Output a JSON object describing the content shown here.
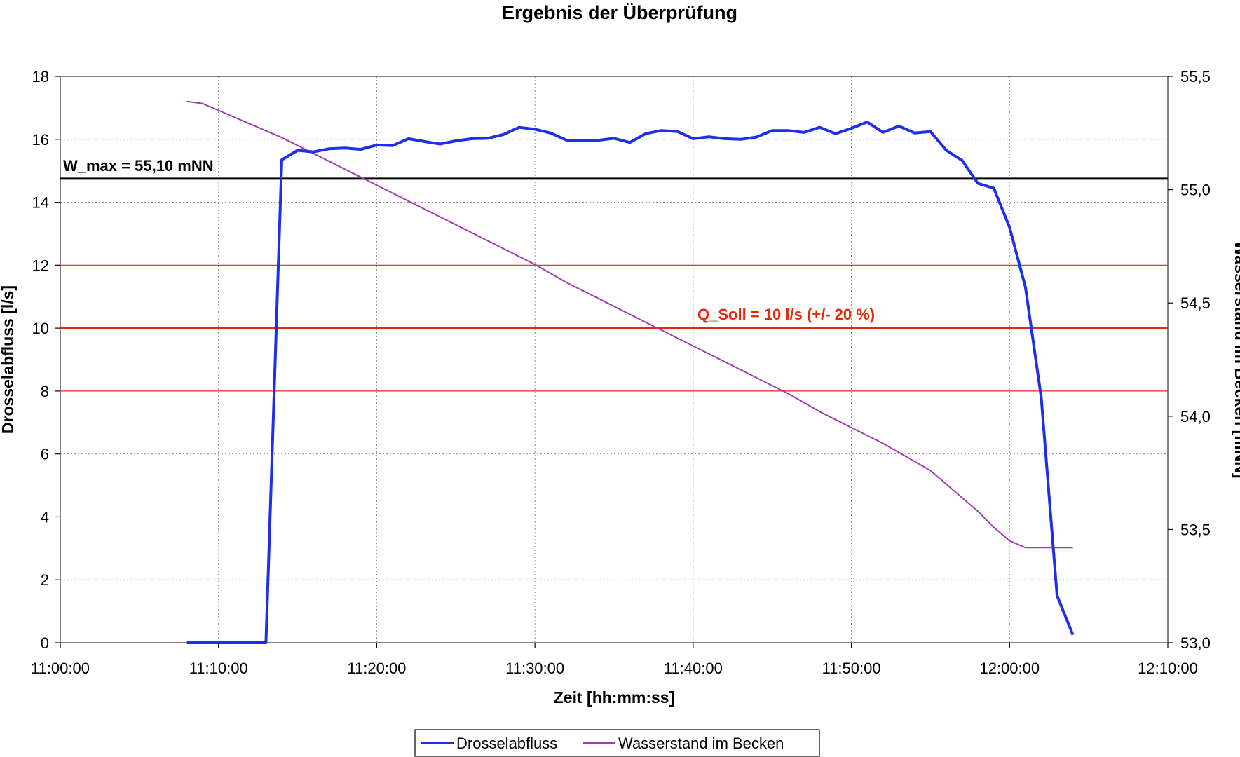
{
  "chart_data": {
    "type": "line",
    "title": "Ergebnis der Überprüfung",
    "xlabel": "Zeit [hh:mm:ss]",
    "ylabel": "Drosselabfluss [l/s]",
    "y2label": "Wasserstand im Becken [mNN]",
    "xlim": [
      "11:00:00",
      "12:10:00"
    ],
    "xticks": [
      "11:00:00",
      "11:10:00",
      "11:20:00",
      "11:30:00",
      "11:40:00",
      "11:50:00",
      "12:00:00",
      "12:10:00"
    ],
    "ylim": [
      0,
      18
    ],
    "yticks": [
      "0",
      "2",
      "4",
      "6",
      "8",
      "10",
      "12",
      "14",
      "16",
      "18"
    ],
    "y2lim": [
      53.0,
      55.5
    ],
    "y2ticks": [
      "53,0",
      "53,5",
      "54,0",
      "54,5",
      "55,0",
      "55,5"
    ],
    "grid": true,
    "legend_position": "bottom-center",
    "series": [
      {
        "name": "Drosselabfluss",
        "axis": "left",
        "color": "#1f2ee8",
        "x": [
          "11:08:00",
          "11:09:00",
          "11:10:00",
          "11:11:00",
          "11:12:00",
          "11:13:00",
          "11:14:00",
          "11:15:00",
          "11:16:00",
          "11:17:00",
          "11:18:00",
          "11:19:00",
          "11:20:00",
          "11:21:00",
          "11:22:00",
          "11:23:00",
          "11:24:00",
          "11:25:00",
          "11:26:00",
          "11:27:00",
          "11:28:00",
          "11:29:00",
          "11:30:00",
          "11:31:00",
          "11:32:00",
          "11:33:00",
          "11:34:00",
          "11:35:00",
          "11:36:00",
          "11:37:00",
          "11:38:00",
          "11:39:00",
          "11:40:00",
          "11:41:00",
          "11:42:00",
          "11:43:00",
          "11:44:00",
          "11:45:00",
          "11:46:00",
          "11:47:00",
          "11:48:00",
          "11:49:00",
          "11:50:00",
          "11:51:00",
          "11:52:00",
          "11:53:00",
          "11:54:00",
          "11:55:00",
          "11:56:00",
          "11:57:00",
          "11:58:00",
          "11:59:00",
          "12:00:00",
          "12:01:00",
          "12:02:00",
          "12:03:00",
          "12:04:00"
        ],
        "values": [
          0,
          0,
          0,
          0,
          0,
          0,
          15.35,
          15.65,
          15.6,
          15.7,
          15.72,
          15.68,
          15.82,
          15.8,
          16.02,
          15.93,
          15.85,
          15.95,
          16.02,
          16.03,
          16.15,
          16.38,
          16.32,
          16.2,
          15.97,
          15.95,
          15.97,
          16.03,
          15.9,
          16.18,
          16.28,
          16.25,
          16.02,
          16.08,
          16.02,
          16.0,
          16.07,
          16.28,
          16.28,
          16.22,
          16.38,
          16.18,
          16.35,
          16.55,
          16.22,
          16.42,
          16.2,
          16.25,
          15.65,
          15.33,
          14.6,
          14.45,
          13.2,
          11.3,
          7.8,
          1.5,
          0.25
        ]
      },
      {
        "name": "Wasserstand im Becken",
        "axis": "right",
        "color": "#a23bb6",
        "x": [
          "11:08:00",
          "11:09:00",
          "11:10:00",
          "11:12:00",
          "11:14:00",
          "11:16:00",
          "11:18:00",
          "11:20:00",
          "11:22:00",
          "11:24:00",
          "11:26:00",
          "11:28:00",
          "11:30:00",
          "11:32:00",
          "11:34:00",
          "11:36:00",
          "11:38:00",
          "11:40:00",
          "11:42:00",
          "11:44:00",
          "11:46:00",
          "11:48:00",
          "11:50:00",
          "11:52:00",
          "11:54:00",
          "11:55:00",
          "11:56:00",
          "11:57:00",
          "11:58:00",
          "11:59:00",
          "12:00:00",
          "12:01:00",
          "12:02:00",
          "12:03:00",
          "12:04:00"
        ],
        "values": [
          55.39,
          55.38,
          55.35,
          55.29,
          55.23,
          55.16,
          55.09,
          55.02,
          54.95,
          54.88,
          54.81,
          54.74,
          54.67,
          54.59,
          54.52,
          54.45,
          54.38,
          54.31,
          54.24,
          54.17,
          54.1,
          54.02,
          53.95,
          53.88,
          53.8,
          53.76,
          53.7,
          53.64,
          53.58,
          53.51,
          53.45,
          53.42,
          53.42,
          53.42,
          53.42
        ]
      }
    ],
    "reference_lines": [
      {
        "label": "W_max = 55,10 mNN",
        "axis": "left",
        "value": 14.75,
        "color": "#000000"
      },
      {
        "label": "Q_Soll = 10 l/s (+/- 20 %)",
        "axis": "left",
        "value": 10,
        "color": "#e8280c"
      },
      {
        "label": "",
        "axis": "left",
        "value": 12,
        "color": "#e8280c"
      },
      {
        "label": "",
        "axis": "left",
        "value": 8,
        "color": "#e8280c"
      }
    ]
  }
}
